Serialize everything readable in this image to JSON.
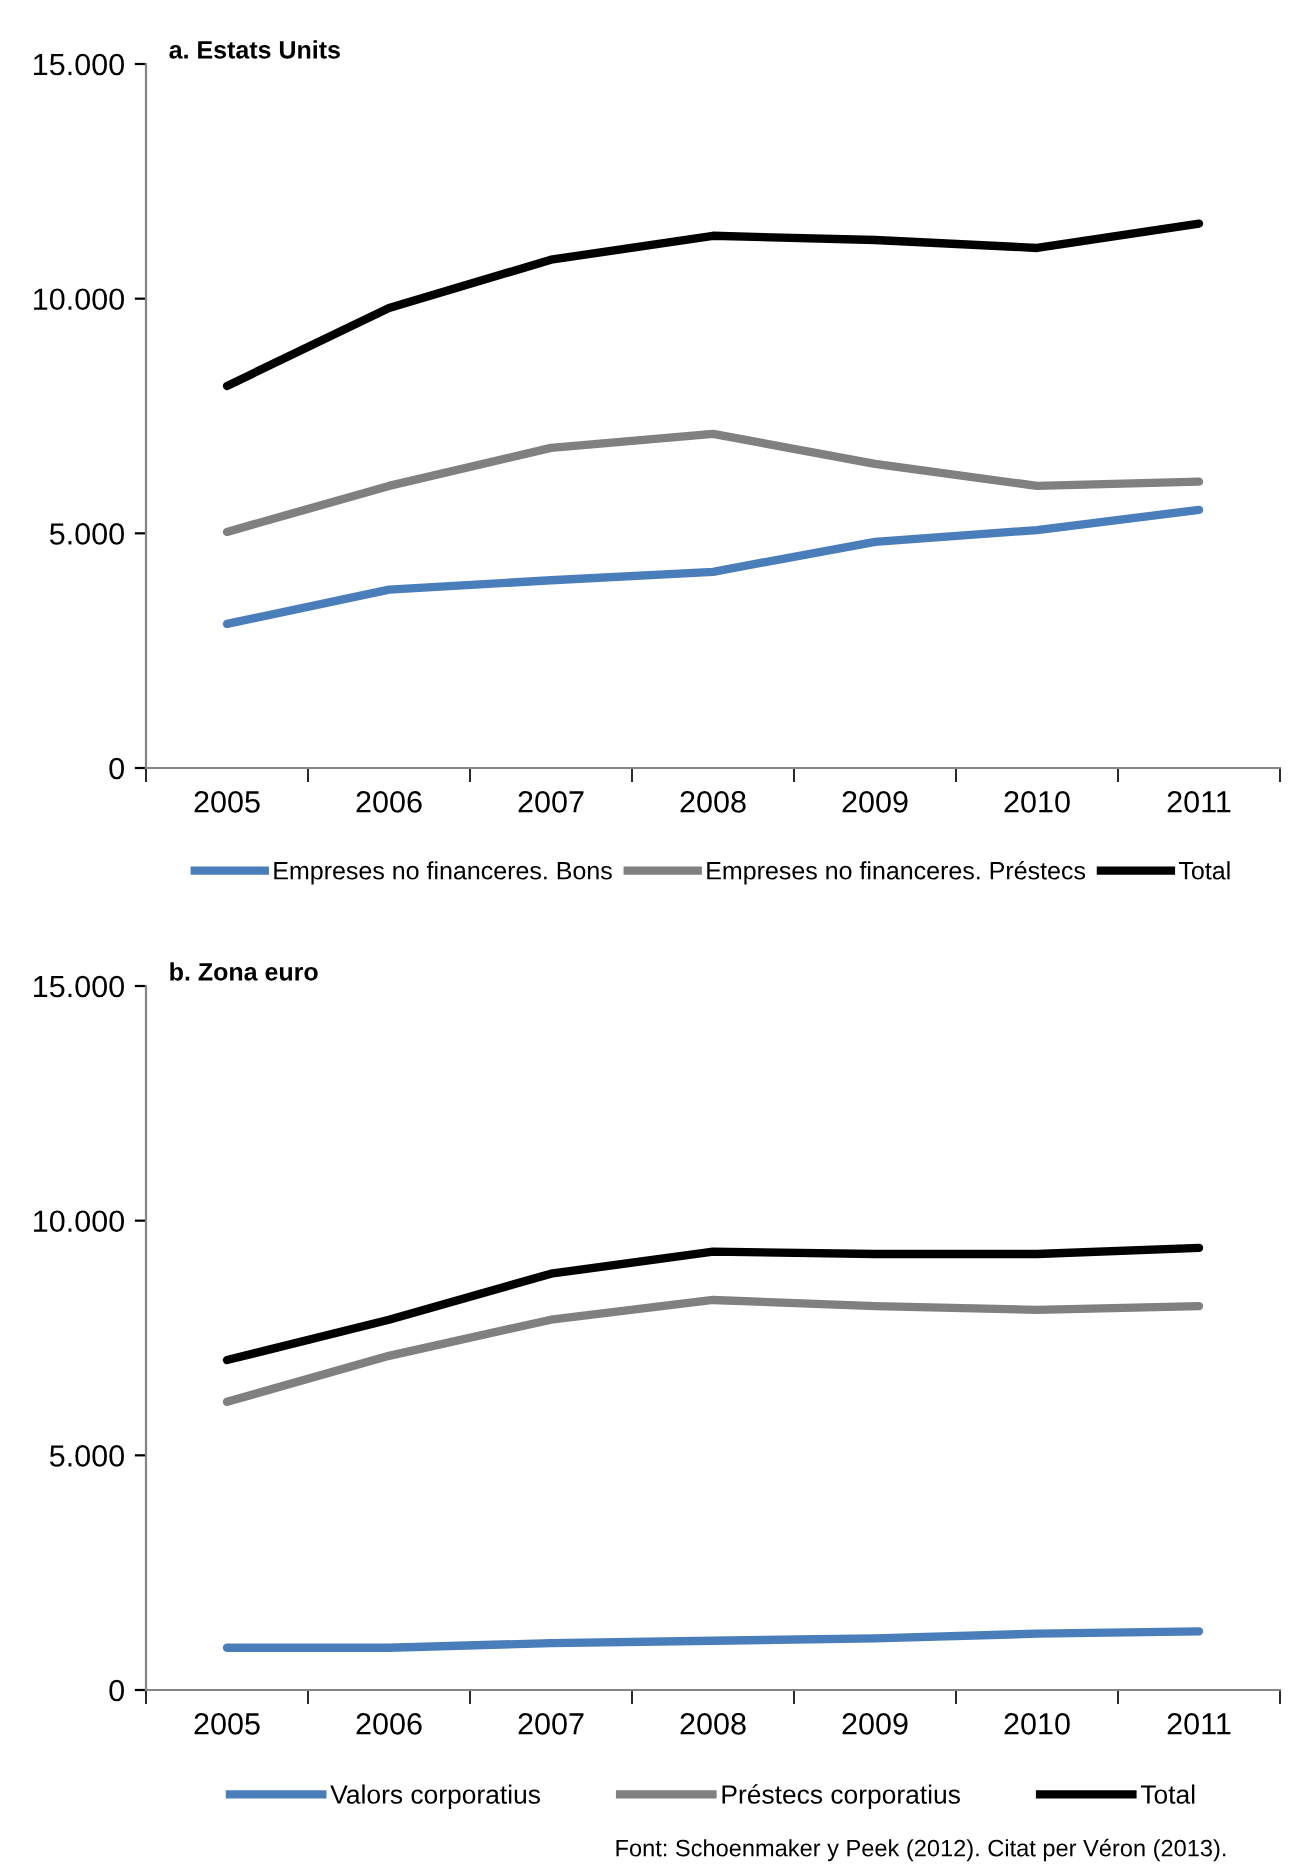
{
  "chart_data": [
    {
      "type": "line",
      "title": "a. Estats Units",
      "categories": [
        "2005",
        "2006",
        "2007",
        "2008",
        "2009",
        "2010",
        "2011"
      ],
      "series": [
        {
          "name": "Empreses no financeres. Bons",
          "color": "#4a7ebb",
          "values": [
            3070,
            3800,
            4000,
            4180,
            4820,
            5070,
            5500
          ]
        },
        {
          "name": "Empreses no financeres. Préstecs",
          "color": "#808080",
          "values": [
            5030,
            6010,
            6820,
            7120,
            6480,
            6010,
            6100
          ]
        },
        {
          "name": "Total",
          "color": "#000000",
          "values": [
            8140,
            9800,
            10830,
            11340,
            11250,
            11080,
            11600
          ]
        }
      ],
      "ylim": [
        0,
        15000
      ],
      "yticks": [
        {
          "value": 0,
          "label": "0"
        },
        {
          "value": 5000,
          "label": "5.000"
        },
        {
          "value": 10000,
          "label": "10.000"
        },
        {
          "value": 15000,
          "label": "15.000"
        }
      ],
      "grid": false,
      "legend": "bottom",
      "line_style": "solid",
      "marker": "none"
    },
    {
      "type": "line",
      "title": "b. Zona euro",
      "categories": [
        "2005",
        "2006",
        "2007",
        "2008",
        "2009",
        "2010",
        "2011"
      ],
      "series": [
        {
          "name": "Valors corporatius",
          "color": "#4a7ebb",
          "values": [
            900,
            900,
            1000,
            1050,
            1100,
            1200,
            1250
          ]
        },
        {
          "name": "Préstecs corporatius",
          "color": "#808080",
          "values": [
            6140,
            7120,
            7890,
            8310,
            8180,
            8100,
            8180
          ]
        },
        {
          "name": "Total",
          "color": "#000000",
          "values": [
            7030,
            7890,
            8870,
            9340,
            9290,
            9290,
            9420
          ]
        }
      ],
      "ylim": [
        0,
        15000
      ],
      "yticks": [
        {
          "value": 0,
          "label": "0"
        },
        {
          "value": 5000,
          "label": "5.000"
        },
        {
          "value": 10000,
          "label": "10.000"
        },
        {
          "value": 15000,
          "label": "15.000"
        }
      ],
      "grid": false,
      "legend": "bottom",
      "line_style": "solid",
      "marker": "none",
      "annotations": [
        "Font: Schoenmaker y Peek (2012). Citat per Véron (2013)."
      ]
    }
  ]
}
